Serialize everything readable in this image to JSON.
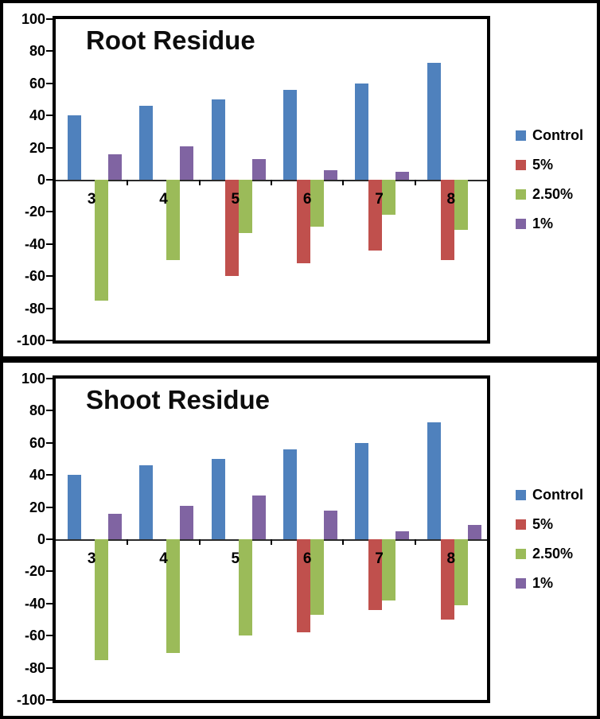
{
  "chart_data": [
    {
      "type": "bar",
      "title": "Root Residue",
      "categories": [
        "3",
        "4",
        "5",
        "6",
        "7",
        "8"
      ],
      "series": [
        {
          "name": "Control",
          "color": "#4F81BD",
          "values": [
            40,
            46,
            50,
            56,
            60,
            73
          ]
        },
        {
          "name": "5%",
          "color": "#C0504D",
          "values": [
            null,
            null,
            -60,
            -52,
            -44,
            -50
          ]
        },
        {
          "name": "2.50%",
          "color": "#9BBB59",
          "values": [
            -75,
            -50,
            -33,
            -29,
            -22,
            -31
          ]
        },
        {
          "name": "1%",
          "color": "#8064A2",
          "values": [
            16,
            21,
            13,
            6,
            5,
            null
          ]
        }
      ],
      "xlabel": "",
      "ylabel": "",
      "ylim": [
        -100,
        100
      ],
      "y_ticks": [
        100,
        80,
        60,
        40,
        20,
        0,
        -20,
        -40,
        -60,
        -80,
        -100
      ],
      "grid": false,
      "legend_position": "right"
    },
    {
      "type": "bar",
      "title": "Shoot Residue",
      "categories": [
        "3",
        "4",
        "5",
        "6",
        "7",
        "8"
      ],
      "series": [
        {
          "name": "Control",
          "color": "#4F81BD",
          "values": [
            40,
            46,
            50,
            56,
            60,
            73
          ]
        },
        {
          "name": "5%",
          "color": "#C0504D",
          "values": [
            null,
            null,
            null,
            -58,
            -44,
            -50
          ]
        },
        {
          "name": "2.50%",
          "color": "#9BBB59",
          "values": [
            -75,
            -71,
            -60,
            -47,
            -38,
            -41
          ]
        },
        {
          "name": "1%",
          "color": "#8064A2",
          "values": [
            16,
            21,
            27,
            18,
            5,
            9
          ]
        }
      ],
      "xlabel": "",
      "ylabel": "",
      "ylim": [
        -100,
        100
      ],
      "y_ticks": [
        100,
        80,
        60,
        40,
        20,
        0,
        -20,
        -40,
        -60,
        -80,
        -100
      ],
      "grid": false,
      "legend_position": "right"
    }
  ]
}
